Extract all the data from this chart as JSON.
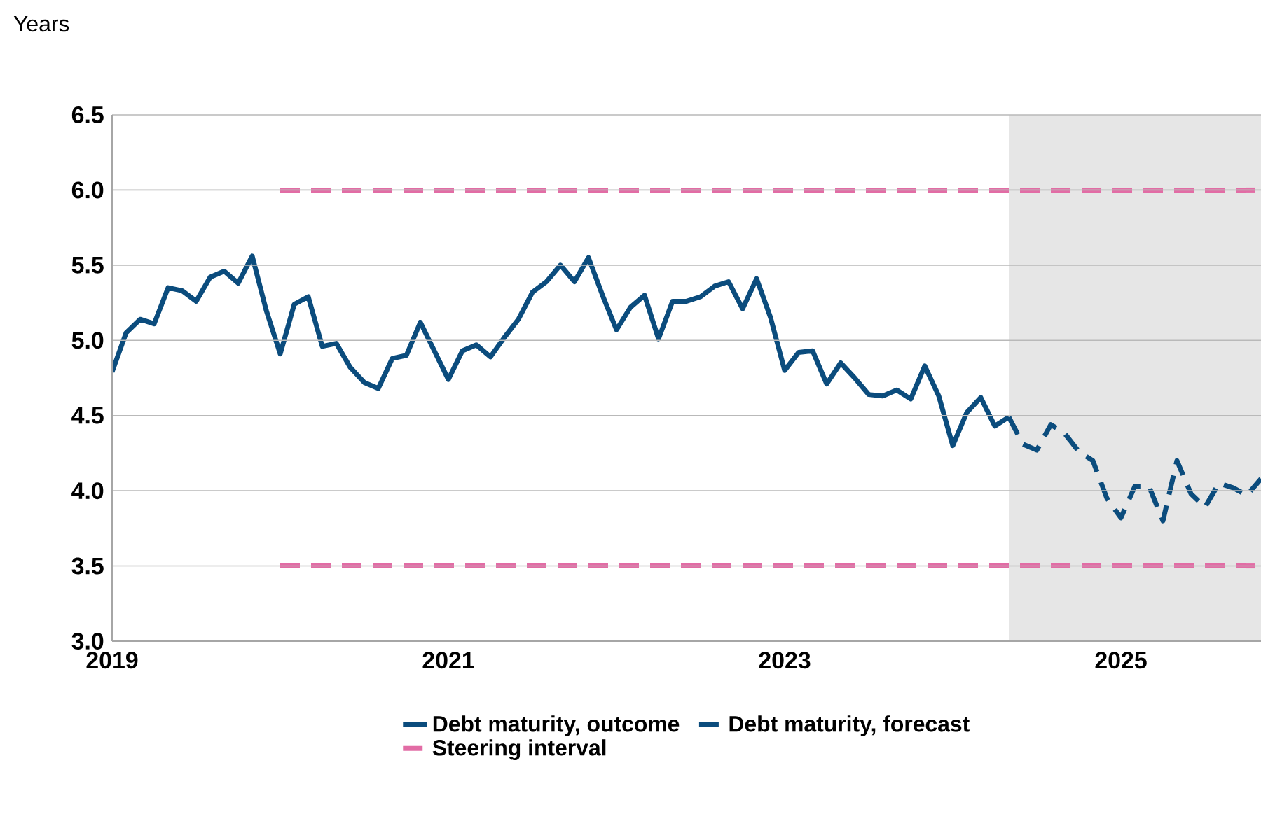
{
  "chart_data": {
    "type": "line",
    "ylabel": "Years",
    "xlim": [
      "2019-01",
      "2025-11"
    ],
    "xticks": [
      "2019",
      "2021",
      "2023",
      "2025"
    ],
    "ylim": [
      3.0,
      6.5
    ],
    "yticks": [
      {
        "value": 3,
        "label": "3.0"
      },
      3.5,
      {
        "value": 4,
        "label": "4.0"
      },
      4.5,
      {
        "value": 5,
        "label": "5.0"
      },
      5.5,
      {
        "value": 6,
        "label": "6.0"
      },
      6.5
    ],
    "grid": "y",
    "legend": "bottom",
    "bands": [
      {
        "axis": "x",
        "from": "2024-05",
        "to": "2025-11",
        "color": "#e6e6e6"
      }
    ],
    "series": [
      {
        "name": "Debt maturity, outcome",
        "color": "#0b4c7d",
        "line_style": "solid",
        "x": [
          "2019-01",
          "2019-02",
          "2019-03",
          "2019-04",
          "2019-05",
          "2019-06",
          "2019-07",
          "2019-08",
          "2019-09",
          "2019-10",
          "2019-11",
          "2019-12",
          "2020-01",
          "2020-02",
          "2020-03",
          "2020-04",
          "2020-05",
          "2020-06",
          "2020-07",
          "2020-08",
          "2020-09",
          "2020-10",
          "2020-11",
          "2020-12",
          "2021-01",
          "2021-02",
          "2021-03",
          "2021-04",
          "2021-05",
          "2021-06",
          "2021-07",
          "2021-08",
          "2021-09",
          "2021-10",
          "2021-11",
          "2021-12",
          "2022-01",
          "2022-02",
          "2022-03",
          "2022-04",
          "2022-05",
          "2022-06",
          "2022-07",
          "2022-08",
          "2022-09",
          "2022-10",
          "2022-11",
          "2022-12",
          "2023-01",
          "2023-02",
          "2023-03",
          "2023-04",
          "2023-05",
          "2023-06",
          "2023-07",
          "2023-08",
          "2023-09",
          "2023-10",
          "2023-11",
          "2023-12",
          "2024-01",
          "2024-02",
          "2024-03",
          "2024-04",
          "2024-05"
        ],
        "values": [
          4.79,
          5.05,
          5.14,
          5.11,
          5.35,
          5.33,
          5.26,
          5.42,
          5.46,
          5.38,
          5.56,
          5.2,
          4.91,
          5.24,
          5.29,
          4.96,
          4.98,
          4.82,
          4.72,
          4.68,
          4.88,
          4.9,
          5.12,
          4.93,
          4.74,
          4.93,
          4.97,
          4.89,
          5.02,
          5.14,
          5.32,
          5.39,
          5.5,
          5.39,
          5.55,
          5.3,
          5.07,
          5.22,
          5.3,
          5.01,
          5.26,
          5.26,
          5.29,
          5.36,
          5.39,
          5.21,
          5.41,
          5.15,
          4.8,
          4.92,
          4.93,
          4.71,
          4.85,
          4.75,
          4.64,
          4.63,
          4.67,
          4.61,
          4.83,
          4.63,
          4.3,
          4.52,
          4.62,
          4.43,
          4.49
        ]
      },
      {
        "name": "Debt maturity, forecast",
        "color": "#0b4c7d",
        "line_style": "dashed",
        "x": [
          "2024-05",
          "2024-06",
          "2024-07",
          "2024-08",
          "2024-09",
          "2024-10",
          "2024-11",
          "2024-12",
          "2025-01",
          "2025-02",
          "2025-03",
          "2025-04",
          "2025-05",
          "2025-06",
          "2025-07",
          "2025-08",
          "2025-09",
          "2025-10",
          "2025-11"
        ],
        "values": [
          4.49,
          4.31,
          4.27,
          4.44,
          4.38,
          4.26,
          4.2,
          3.95,
          3.82,
          4.03,
          4.03,
          3.8,
          4.2,
          3.98,
          3.89,
          4.05,
          4.02,
          3.97,
          4.08
        ]
      },
      {
        "name": "Steering interval",
        "color": "#e26ca5",
        "line_style": "dashed",
        "x": [
          "2020-01",
          "2025-11"
        ],
        "values": [
          6.0,
          6.0
        ]
      },
      {
        "color": "#e26ca5",
        "line_style": "dashed",
        "x": [
          "2020-01",
          "2025-11"
        ],
        "values": [
          3.5,
          3.5
        ]
      }
    ]
  }
}
